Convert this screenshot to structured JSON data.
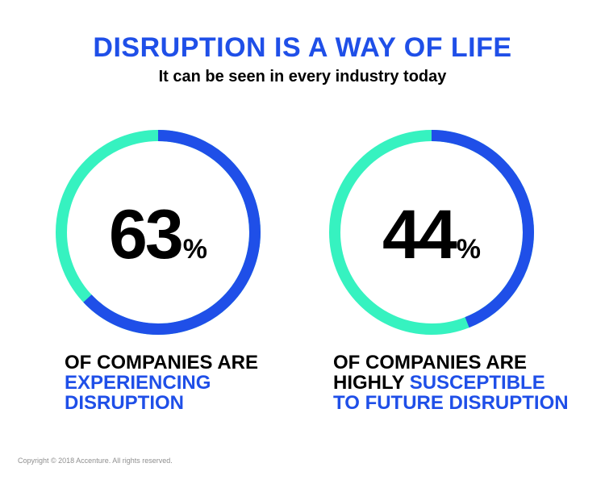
{
  "header": {
    "title": "DISRUPTION IS A WAY OF LIFE",
    "subtitle": "It can be seen in every industry today"
  },
  "colors": {
    "brand_blue": "#1f4fe8",
    "mint": "#36f2c0",
    "text": "#000000",
    "copyright": "#8f8f8f"
  },
  "stats": [
    {
      "value": "63",
      "unit": "%",
      "percent": 63,
      "caption_line1": "OF COMPANIES ARE",
      "caption_blue1": "EXPERIENCING",
      "caption_blue2": "DISRUPTION"
    },
    {
      "value": "44",
      "unit": "%",
      "percent": 44,
      "caption_line1": "OF COMPANIES ARE",
      "caption_line2_black": "HIGHLY ",
      "caption_line2_blue": "SUSCEPTIBLE",
      "caption_blue3": "TO FUTURE DISRUPTION"
    }
  ],
  "footer": {
    "copyright": "Copyright © 2018 Accenture. All rights reserved."
  }
}
